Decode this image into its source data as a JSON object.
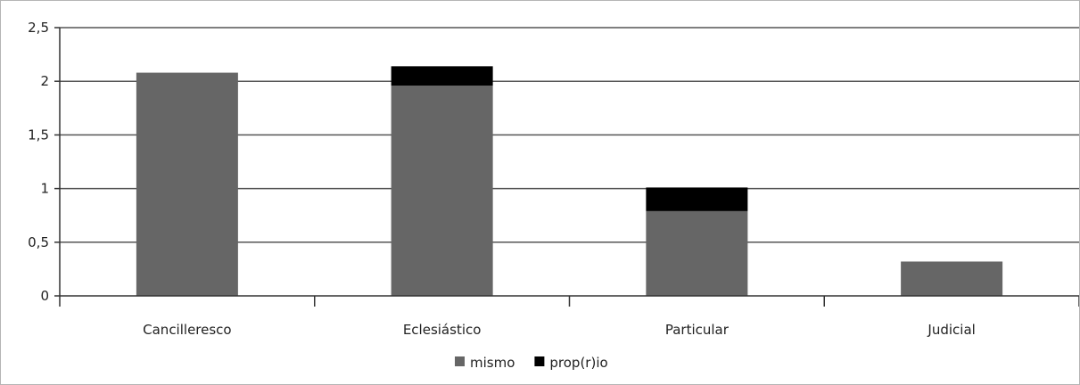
{
  "chart_data": {
    "type": "bar",
    "stacked": true,
    "categories": [
      "Cancilleresco",
      "Eclesiástico",
      "Particular",
      "Judicial"
    ],
    "series": [
      {
        "name": "mismo",
        "values": [
          2.08,
          1.96,
          0.79,
          0.32
        ],
        "color": "#666666"
      },
      {
        "name": "prop(r)io",
        "values": [
          0,
          0.18,
          0.22,
          0
        ],
        "color": "#000000"
      }
    ],
    "ylim": [
      0,
      2.5
    ],
    "yticks": [
      0,
      0.5,
      1,
      1.5,
      2,
      2.5
    ],
    "ytick_labels": [
      "0",
      "0,5",
      "1",
      "1,5",
      "2",
      "2,5"
    ],
    "grid": true,
    "legend_position": "bottom",
    "title": "",
    "xlabel": "",
    "ylabel": ""
  }
}
